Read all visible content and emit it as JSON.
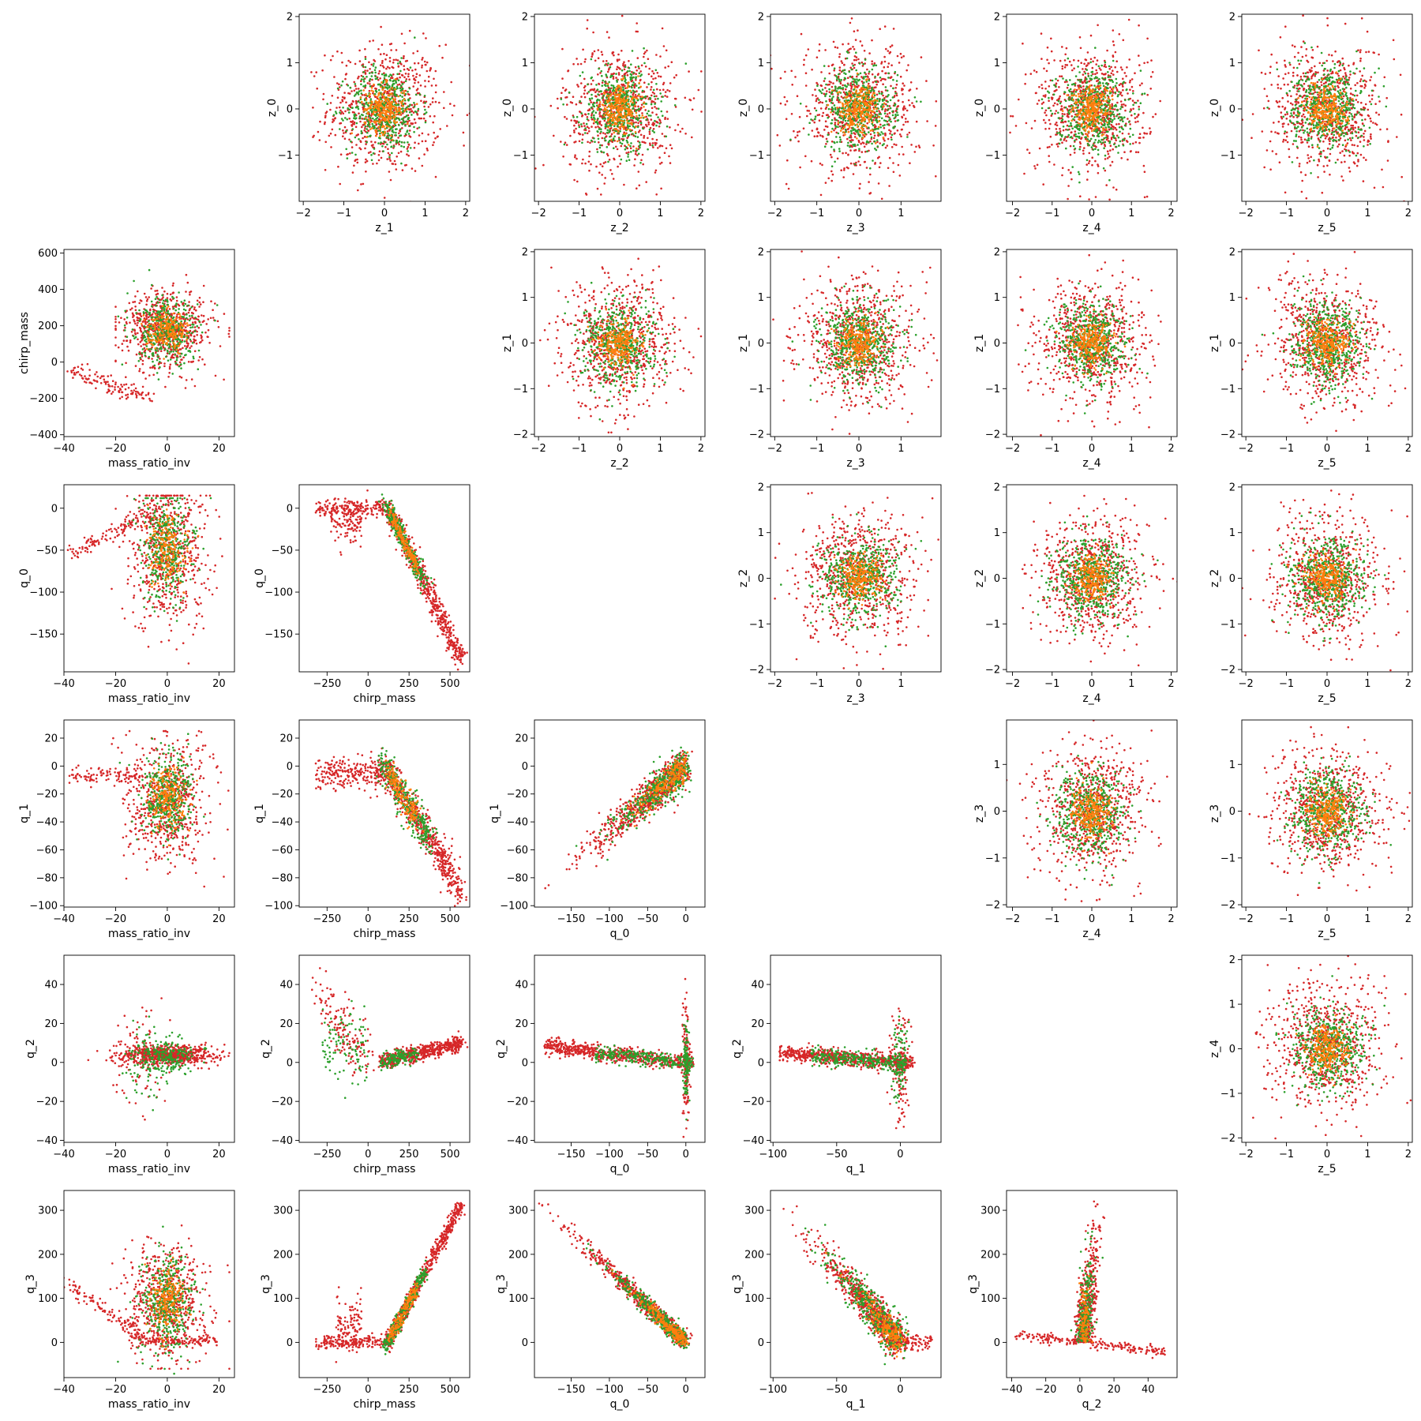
{
  "chart_data": {
    "type": "scatter",
    "layout": "pairplot",
    "series": [
      {
        "name": "",
        "color": "#d62728"
      },
      {
        "name": "",
        "color": "#2ca02c"
      },
      {
        "name": "",
        "color": "#ff7f0e"
      }
    ],
    "panels": [
      {
        "row": 0,
        "col": 1,
        "kind": "gauss",
        "xlabel": "z_1",
        "ylabel": "z_0",
        "xlim": [
          -2.1,
          2.1
        ],
        "ylim": [
          -2.0,
          2.05
        ],
        "xticks": [
          -2,
          -1,
          0,
          1,
          2
        ],
        "yticks": [
          -1,
          0,
          1,
          2
        ]
      },
      {
        "row": 0,
        "col": 2,
        "kind": "gauss",
        "xlabel": "z_2",
        "ylabel": "z_0",
        "xlim": [
          -2.1,
          2.1
        ],
        "ylim": [
          -2.0,
          2.05
        ],
        "xticks": [
          -2,
          -1,
          0,
          1,
          2
        ],
        "yticks": [
          -1,
          0,
          1,
          2
        ]
      },
      {
        "row": 0,
        "col": 3,
        "kind": "gauss",
        "xlabel": "z_3",
        "ylabel": "z_0",
        "xlim": [
          -2.1,
          1.95
        ],
        "ylim": [
          -2.0,
          2.05
        ],
        "xticks": [
          -2,
          -1,
          0,
          1
        ],
        "yticks": [
          -1,
          0,
          1,
          2
        ]
      },
      {
        "row": 0,
        "col": 4,
        "kind": "gauss",
        "xlabel": "z_4",
        "ylabel": "z_0",
        "xlim": [
          -2.15,
          2.15
        ],
        "ylim": [
          -2.0,
          2.05
        ],
        "xticks": [
          -2,
          -1,
          0,
          1,
          2
        ],
        "yticks": [
          -1,
          0,
          1,
          2
        ]
      },
      {
        "row": 0,
        "col": 5,
        "kind": "gauss",
        "xlabel": "z_5",
        "ylabel": "z_0",
        "xlim": [
          -2.1,
          2.1
        ],
        "ylim": [
          -2.0,
          2.05
        ],
        "xticks": [
          -2,
          -1,
          0,
          1,
          2
        ],
        "yticks": [
          -1,
          0,
          1,
          2
        ]
      },
      {
        "row": 1,
        "col": 0,
        "kind": "mr_cm",
        "xlabel": "mass_ratio_inv",
        "ylabel": "chirp_mass",
        "xlim": [
          -40,
          26
        ],
        "ylim": [
          -410,
          620
        ],
        "xticks": [
          -40,
          -20,
          0,
          20
        ],
        "yticks": [
          -400,
          -200,
          0,
          200,
          400,
          600
        ]
      },
      {
        "row": 1,
        "col": 2,
        "kind": "gauss",
        "xlabel": "z_2",
        "ylabel": "z_1",
        "xlim": [
          -2.1,
          2.1
        ],
        "ylim": [
          -2.05,
          2.05
        ],
        "xticks": [
          -2,
          -1,
          0,
          1,
          2
        ],
        "yticks": [
          -2,
          -1,
          0,
          1,
          2
        ]
      },
      {
        "row": 1,
        "col": 3,
        "kind": "gauss",
        "xlabel": "z_3",
        "ylabel": "z_1",
        "xlim": [
          -2.1,
          1.95
        ],
        "ylim": [
          -2.05,
          2.05
        ],
        "xticks": [
          -2,
          -1,
          0,
          1
        ],
        "yticks": [
          -2,
          -1,
          0,
          1,
          2
        ]
      },
      {
        "row": 1,
        "col": 4,
        "kind": "gauss",
        "xlabel": "z_4",
        "ylabel": "z_1",
        "xlim": [
          -2.15,
          2.15
        ],
        "ylim": [
          -2.05,
          2.05
        ],
        "xticks": [
          -2,
          -1,
          0,
          1,
          2
        ],
        "yticks": [
          -2,
          -1,
          0,
          1,
          2
        ]
      },
      {
        "row": 1,
        "col": 5,
        "kind": "gauss",
        "xlabel": "z_5",
        "ylabel": "z_1",
        "xlim": [
          -2.1,
          2.1
        ],
        "ylim": [
          -2.05,
          2.05
        ],
        "xticks": [
          -2,
          -1,
          0,
          1,
          2
        ],
        "yticks": [
          -2,
          -1,
          0,
          1,
          2
        ]
      },
      {
        "row": 2,
        "col": 0,
        "kind": "mr_q0",
        "xlabel": "mass_ratio_inv",
        "ylabel": "q_0",
        "xlim": [
          -40,
          26
        ],
        "ylim": [
          -195,
          28
        ],
        "xticks": [
          -40,
          -20,
          0,
          20
        ],
        "yticks": [
          -150,
          -100,
          -50,
          0
        ]
      },
      {
        "row": 2,
        "col": 1,
        "kind": "cm_q0",
        "xlabel": "chirp_mass",
        "ylabel": "q_0",
        "xlim": [
          -420,
          620
        ],
        "ylim": [
          -195,
          28
        ],
        "xticks": [
          -250,
          0,
          250,
          500
        ],
        "yticks": [
          -150,
          -100,
          -50,
          0
        ]
      },
      {
        "row": 2,
        "col": 3,
        "kind": "gauss",
        "xlabel": "z_3",
        "ylabel": "z_2",
        "xlim": [
          -2.1,
          1.95
        ],
        "ylim": [
          -2.05,
          2.05
        ],
        "xticks": [
          -2,
          -1,
          0,
          1
        ],
        "yticks": [
          -2,
          -1,
          0,
          1,
          2
        ]
      },
      {
        "row": 2,
        "col": 4,
        "kind": "gauss",
        "xlabel": "z_4",
        "ylabel": "z_2",
        "xlim": [
          -2.15,
          2.15
        ],
        "ylim": [
          -2.05,
          2.05
        ],
        "xticks": [
          -2,
          -1,
          0,
          1,
          2
        ],
        "yticks": [
          -2,
          -1,
          0,
          1,
          2
        ]
      },
      {
        "row": 2,
        "col": 5,
        "kind": "gauss",
        "xlabel": "z_5",
        "ylabel": "z_2",
        "xlim": [
          -2.1,
          2.1
        ],
        "ylim": [
          -2.05,
          2.05
        ],
        "xticks": [
          -2,
          -1,
          0,
          1,
          2
        ],
        "yticks": [
          -2,
          -1,
          0,
          1,
          2
        ]
      },
      {
        "row": 3,
        "col": 0,
        "kind": "mr_q1",
        "xlabel": "mass_ratio_inv",
        "ylabel": "q_1",
        "xlim": [
          -40,
          26
        ],
        "ylim": [
          -101,
          33
        ],
        "xticks": [
          -40,
          -20,
          0,
          20
        ],
        "yticks": [
          -100,
          -80,
          -60,
          -40,
          -20,
          0,
          20
        ]
      },
      {
        "row": 3,
        "col": 1,
        "kind": "cm_q1",
        "xlabel": "chirp_mass",
        "ylabel": "q_1",
        "xlim": [
          -420,
          620
        ],
        "ylim": [
          -101,
          33
        ],
        "xticks": [
          -250,
          0,
          250,
          500
        ],
        "yticks": [
          -100,
          -80,
          -60,
          -40,
          -20,
          0,
          20
        ]
      },
      {
        "row": 3,
        "col": 2,
        "kind": "q0_q1",
        "xlabel": "q_0",
        "ylabel": "q_1",
        "xlim": [
          -198,
          25
        ],
        "ylim": [
          -101,
          33
        ],
        "xticks": [
          -150,
          -100,
          -50,
          0
        ],
        "yticks": [
          -100,
          -80,
          -60,
          -40,
          -20,
          0,
          20
        ]
      },
      {
        "row": 3,
        "col": 4,
        "kind": "gauss",
        "xlabel": "z_4",
        "ylabel": "z_3",
        "xlim": [
          -2.15,
          2.15
        ],
        "ylim": [
          -2.05,
          1.95
        ],
        "xticks": [
          -2,
          -1,
          0,
          1,
          2
        ],
        "yticks": [
          -2,
          -1,
          0,
          1
        ]
      },
      {
        "row": 3,
        "col": 5,
        "kind": "gauss",
        "xlabel": "z_5",
        "ylabel": "z_3",
        "xlim": [
          -2.1,
          2.1
        ],
        "ylim": [
          -2.05,
          1.95
        ],
        "xticks": [
          -2,
          -1,
          0,
          1,
          2
        ],
        "yticks": [
          -2,
          -1,
          0,
          1
        ]
      },
      {
        "row": 4,
        "col": 0,
        "kind": "mr_q2",
        "xlabel": "mass_ratio_inv",
        "ylabel": "q_2",
        "xlim": [
          -40,
          26
        ],
        "ylim": [
          -41,
          55
        ],
        "xticks": [
          -40,
          -20,
          0,
          20
        ],
        "yticks": [
          -40,
          -20,
          0,
          20,
          40
        ]
      },
      {
        "row": 4,
        "col": 1,
        "kind": "cm_q2",
        "xlabel": "chirp_mass",
        "ylabel": "q_2",
        "xlim": [
          -420,
          620
        ],
        "ylim": [
          -41,
          55
        ],
        "xticks": [
          -250,
          0,
          250,
          500
        ],
        "yticks": [
          -40,
          -20,
          0,
          20,
          40
        ]
      },
      {
        "row": 4,
        "col": 2,
        "kind": "q0_q2",
        "xlabel": "q_0",
        "ylabel": "q_2",
        "xlim": [
          -198,
          25
        ],
        "ylim": [
          -41,
          55
        ],
        "xticks": [
          -150,
          -100,
          -50,
          0
        ],
        "yticks": [
          -40,
          -20,
          0,
          20,
          40
        ]
      },
      {
        "row": 4,
        "col": 3,
        "kind": "q1_q2",
        "xlabel": "q_1",
        "ylabel": "q_2",
        "xlim": [
          -102,
          32
        ],
        "ylim": [
          -41,
          55
        ],
        "xticks": [
          -100,
          -50,
          0
        ],
        "yticks": [
          -40,
          -20,
          0,
          20,
          40
        ]
      },
      {
        "row": 4,
        "col": 5,
        "kind": "gauss",
        "xlabel": "z_5",
        "ylabel": "z_4",
        "xlim": [
          -2.1,
          2.1
        ],
        "ylim": [
          -2.1,
          2.1
        ],
        "xticks": [
          -2,
          -1,
          0,
          1,
          2
        ],
        "yticks": [
          -2,
          -1,
          0,
          1,
          2
        ]
      },
      {
        "row": 5,
        "col": 0,
        "kind": "mr_q3",
        "xlabel": "mass_ratio_inv",
        "ylabel": "q_3",
        "xlim": [
          -40,
          26
        ],
        "ylim": [
          -80,
          345
        ],
        "xticks": [
          -40,
          -20,
          0,
          20
        ],
        "yticks": [
          0,
          100,
          200,
          300
        ]
      },
      {
        "row": 5,
        "col": 1,
        "kind": "cm_q3",
        "xlabel": "chirp_mass",
        "ylabel": "q_3",
        "xlim": [
          -420,
          620
        ],
        "ylim": [
          -80,
          345
        ],
        "xticks": [
          -250,
          0,
          250,
          500
        ],
        "yticks": [
          0,
          100,
          200,
          300
        ]
      },
      {
        "row": 5,
        "col": 2,
        "kind": "q0_q3",
        "xlabel": "q_0",
        "ylabel": "q_3",
        "xlim": [
          -198,
          25
        ],
        "ylim": [
          -80,
          345
        ],
        "xticks": [
          -150,
          -100,
          -50,
          0
        ],
        "yticks": [
          0,
          100,
          200,
          300
        ]
      },
      {
        "row": 5,
        "col": 3,
        "kind": "q1_q3",
        "xlabel": "q_1",
        "ylabel": "q_3",
        "xlim": [
          -102,
          32
        ],
        "ylim": [
          -80,
          345
        ],
        "xticks": [
          -100,
          -50,
          0
        ],
        "yticks": [
          0,
          100,
          200,
          300
        ]
      },
      {
        "row": 5,
        "col": 4,
        "kind": "q2_q3",
        "xlabel": "q_2",
        "ylabel": "q_3",
        "xlim": [
          -43,
          57
        ],
        "ylim": [
          -80,
          345
        ],
        "xticks": [
          -40,
          -20,
          0,
          20,
          40
        ],
        "yticks": [
          0,
          100,
          200,
          300
        ]
      }
    ]
  }
}
